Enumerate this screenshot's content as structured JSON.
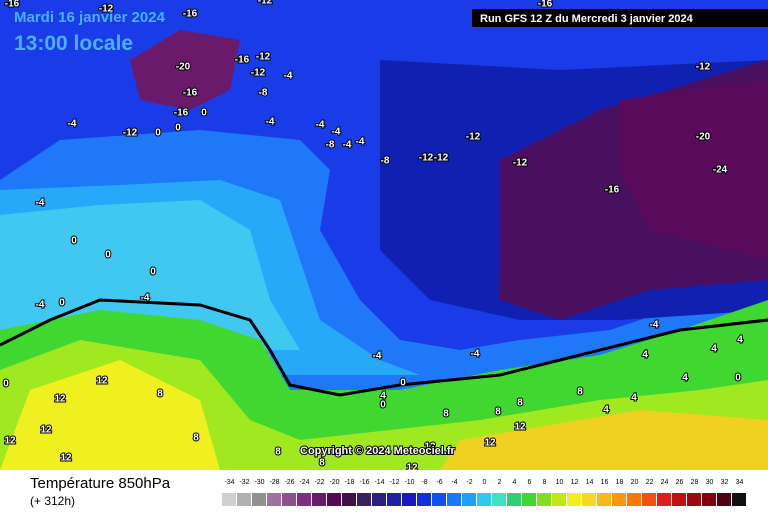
{
  "header": {
    "date": "Mardi 16 janvier 2024",
    "time": "13:00 locale",
    "run": "Run GFS 12 Z du Mercredi 3 janvier 2024"
  },
  "copyright": "Copyright © 2024 Meteociel.fr",
  "legend": {
    "title": "Température 850hPa",
    "lead": "(+ 312h)",
    "values": [
      -34,
      -32,
      -30,
      -28,
      -26,
      -24,
      -22,
      -20,
      -18,
      -16,
      -14,
      -12,
      -10,
      -8,
      -6,
      -4,
      -2,
      0,
      2,
      4,
      6,
      8,
      10,
      12,
      14,
      16,
      18,
      20,
      22,
      24,
      26,
      28,
      30,
      32,
      34
    ],
    "colors": [
      "#d0d0d0",
      "#b0b0b0",
      "#909090",
      "#a070a0",
      "#905090",
      "#803080",
      "#6a1a6a",
      "#560856",
      "#40104a",
      "#3a2060",
      "#2a2080",
      "#2020a0",
      "#1818c0",
      "#1030e0",
      "#1050f0",
      "#1878f8",
      "#20a0f8",
      "#30c8f0",
      "#40e0c0",
      "#30d070",
      "#40d830",
      "#80e020",
      "#c0e818",
      "#f0f020",
      "#f8d820",
      "#f8b818",
      "#f89810",
      "#f87808",
      "#f05010",
      "#e02018",
      "#c01010",
      "#a00810",
      "#800010",
      "#500010",
      "#101010"
    ]
  },
  "map": {
    "labels": [
      -16,
      -12,
      -16,
      -12,
      -16,
      -20,
      -16,
      -12,
      -12,
      -4,
      -8,
      -16,
      -16,
      0,
      -12,
      0,
      0,
      -4,
      -4,
      -4,
      -4,
      -8,
      -4,
      -4,
      -8,
      -12,
      -12,
      -12,
      -12,
      -12,
      -20,
      -24,
      -16,
      -4,
      0,
      0,
      0,
      -4,
      -4,
      0,
      -4,
      -4,
      -4,
      0,
      0,
      4,
      12,
      8,
      0,
      12,
      12,
      12,
      12,
      8,
      8,
      8,
      12,
      12,
      12,
      8,
      8,
      8,
      8,
      4,
      4,
      4,
      4,
      4,
      4,
      0,
      12
    ]
  }
}
